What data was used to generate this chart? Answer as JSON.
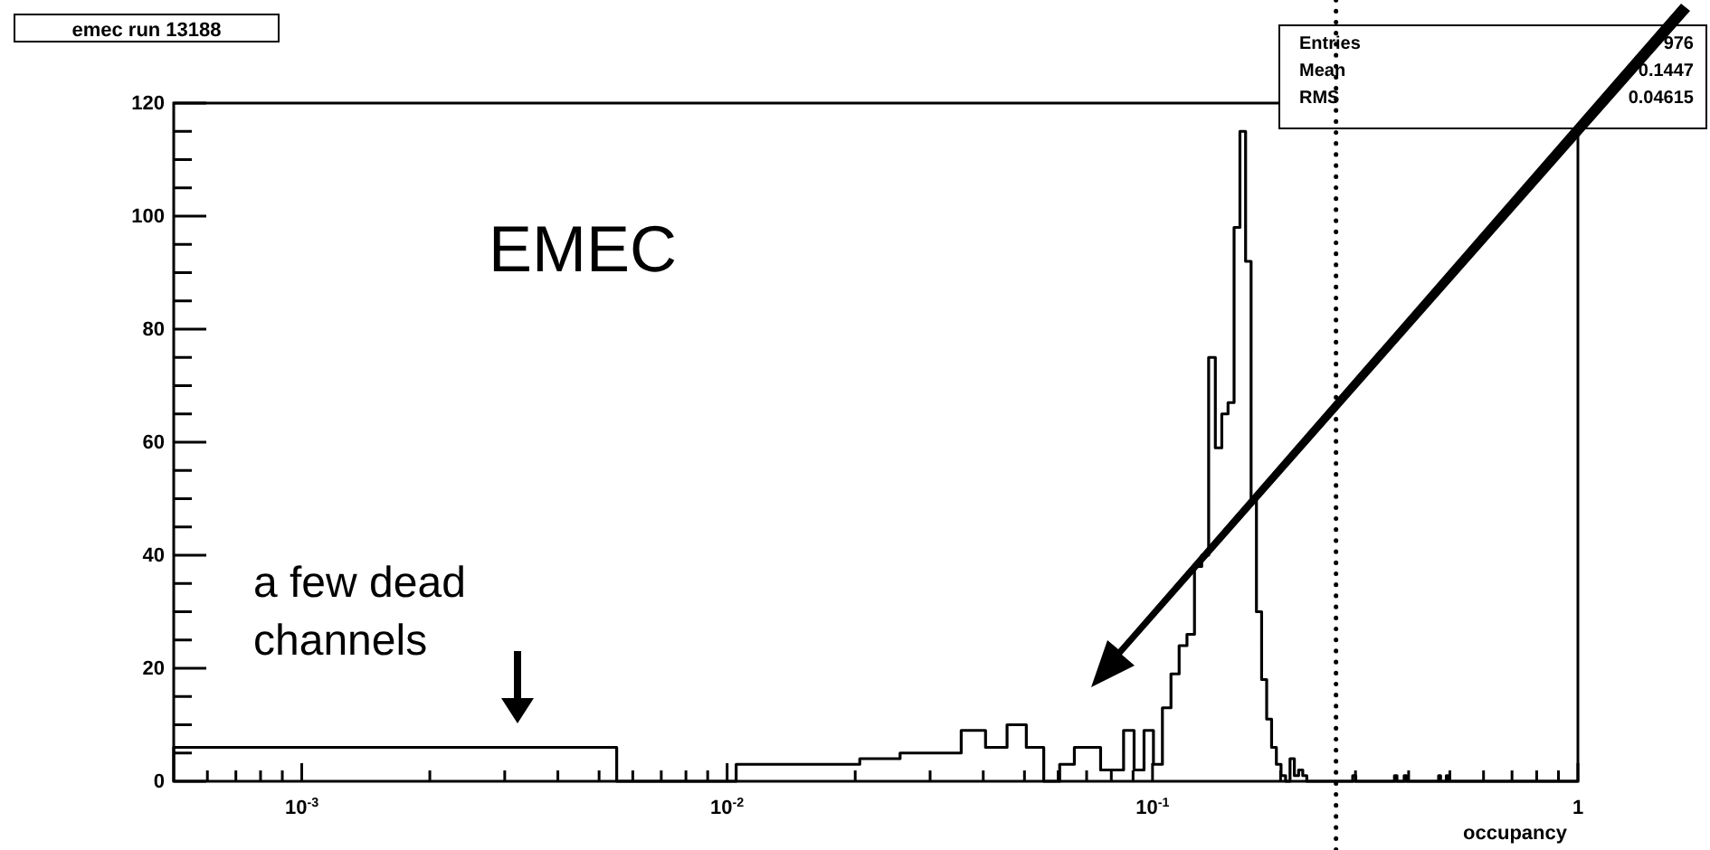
{
  "chart_data": {
    "type": "histogram",
    "title": "emec run 13188",
    "xlabel": "occupancy",
    "log": "x",
    "bins": [
      0.0005,
      0.0055,
      0.0105,
      0.0155,
      0.0205,
      0.0255,
      0.0305,
      0.0355,
      0.0405,
      0.0455,
      0.0505,
      0.0555,
      0.0605,
      0.0655,
      0.0705,
      0.0755,
      0.0805,
      0.0855,
      0.0905,
      0.0955,
      0.1005,
      0.1055,
      0.1105,
      0.1155,
      0.1205,
      0.1255,
      0.1305,
      0.1355,
      0.1405,
      0.1455,
      0.1505,
      0.1555,
      0.1605,
      0.1655,
      0.1705,
      0.1755,
      0.1805,
      0.1855,
      0.1905,
      0.1955,
      0.2005,
      0.2055,
      0.2105,
      0.2155,
      0.2205,
      0.2255,
      0.2305,
      0.2955,
      0.3005,
      0.3705,
      0.3755,
      0.3905,
      0.3955,
      0.4705,
      0.4755,
      0.4905,
      0.4955,
      1
    ],
    "values": [
      6,
      0,
      3,
      3,
      4,
      5,
      5,
      9,
      6,
      10,
      6,
      0,
      3,
      6,
      6,
      2,
      2,
      9,
      2,
      9,
      3,
      13,
      19,
      24,
      26,
      38,
      40,
      75,
      59,
      65,
      67,
      98,
      115,
      92,
      50,
      30,
      18,
      11,
      6,
      3,
      1,
      0,
      4,
      1,
      2,
      1,
      0,
      1,
      0,
      1,
      0,
      1,
      0,
      1,
      0,
      1,
      0
    ],
    "color": "#000000",
    "xlim": [
      0.0005,
      1
    ],
    "ylim": [
      0,
      120
    ],
    "xticks": [
      {
        "value": 0.0006,
        "label": null
      },
      {
        "value": 0.0007,
        "label": null
      },
      {
        "value": 0.0008,
        "label": null
      },
      {
        "value": 0.0009,
        "label": null
      },
      {
        "value": 0.001,
        "label": "10$^{-3}$"
      },
      {
        "value": 0.002,
        "label": null
      },
      {
        "value": 0.003,
        "label": null
      },
      {
        "value": 0.004,
        "label": null
      },
      {
        "value": 0.005,
        "label": null
      },
      {
        "value": 0.006,
        "label": null
      },
      {
        "value": 0.007,
        "label": null
      },
      {
        "value": 0.008,
        "label": null
      },
      {
        "value": 0.009,
        "label": null
      },
      {
        "value": 0.01,
        "label": "10$^{-2}$"
      },
      {
        "value": 0.02,
        "label": null
      },
      {
        "value": 0.03,
        "label": null
      },
      {
        "value": 0.04,
        "label": null
      },
      {
        "value": 0.05,
        "label": null
      },
      {
        "value": 0.06,
        "label": null
      },
      {
        "value": 0.07,
        "label": null
      },
      {
        "value": 0.08,
        "label": null
      },
      {
        "value": 0.09,
        "label": null
      },
      {
        "value": 0.1,
        "label": "10$^{-1}$"
      },
      {
        "value": 0.2,
        "label": null
      },
      {
        "value": 0.3,
        "label": null
      },
      {
        "value": 0.4,
        "label": null
      },
      {
        "value": 0.5,
        "label": null
      },
      {
        "value": 0.6,
        "label": null
      },
      {
        "value": 0.7,
        "label": null
      },
      {
        "value": 0.8,
        "label": null
      },
      {
        "value": 0.9,
        "label": null
      },
      1
    ],
    "yticks": [
      0,
      {
        "value": 5,
        "label": null
      },
      {
        "value": 10,
        "label": null
      },
      {
        "value": 15,
        "label": null
      },
      20,
      {
        "value": 25,
        "label": null
      },
      {
        "value": 30,
        "label": null
      },
      {
        "value": 35,
        "label": null
      },
      40,
      {
        "value": 45,
        "label": null
      },
      {
        "value": 50,
        "label": null
      },
      {
        "value": 55,
        "label": null
      },
      60,
      {
        "value": 65,
        "label": null
      },
      {
        "value": 70,
        "label": null
      },
      {
        "value": 75,
        "label": null
      },
      80,
      {
        "value": 85,
        "label": null
      },
      {
        "value": 90,
        "label": null
      },
      {
        "value": 95,
        "label": null
      },
      100,
      {
        "value": 105,
        "label": null
      },
      {
        "value": 110,
        "label": null
      },
      {
        "value": 115,
        "label": null
      },
      120
    ],
    "ref_lines": [
      {
        "axis": "x",
        "value": 0.27,
        "label": null,
        "color": "#000000",
        "line_style": "dotted"
      }
    ],
    "annotations": [
      "EMEC",
      "a few dead channels",
      "Entries 976",
      "Mean 0.1447",
      "RMS 0.04615"
    ]
  }
}
